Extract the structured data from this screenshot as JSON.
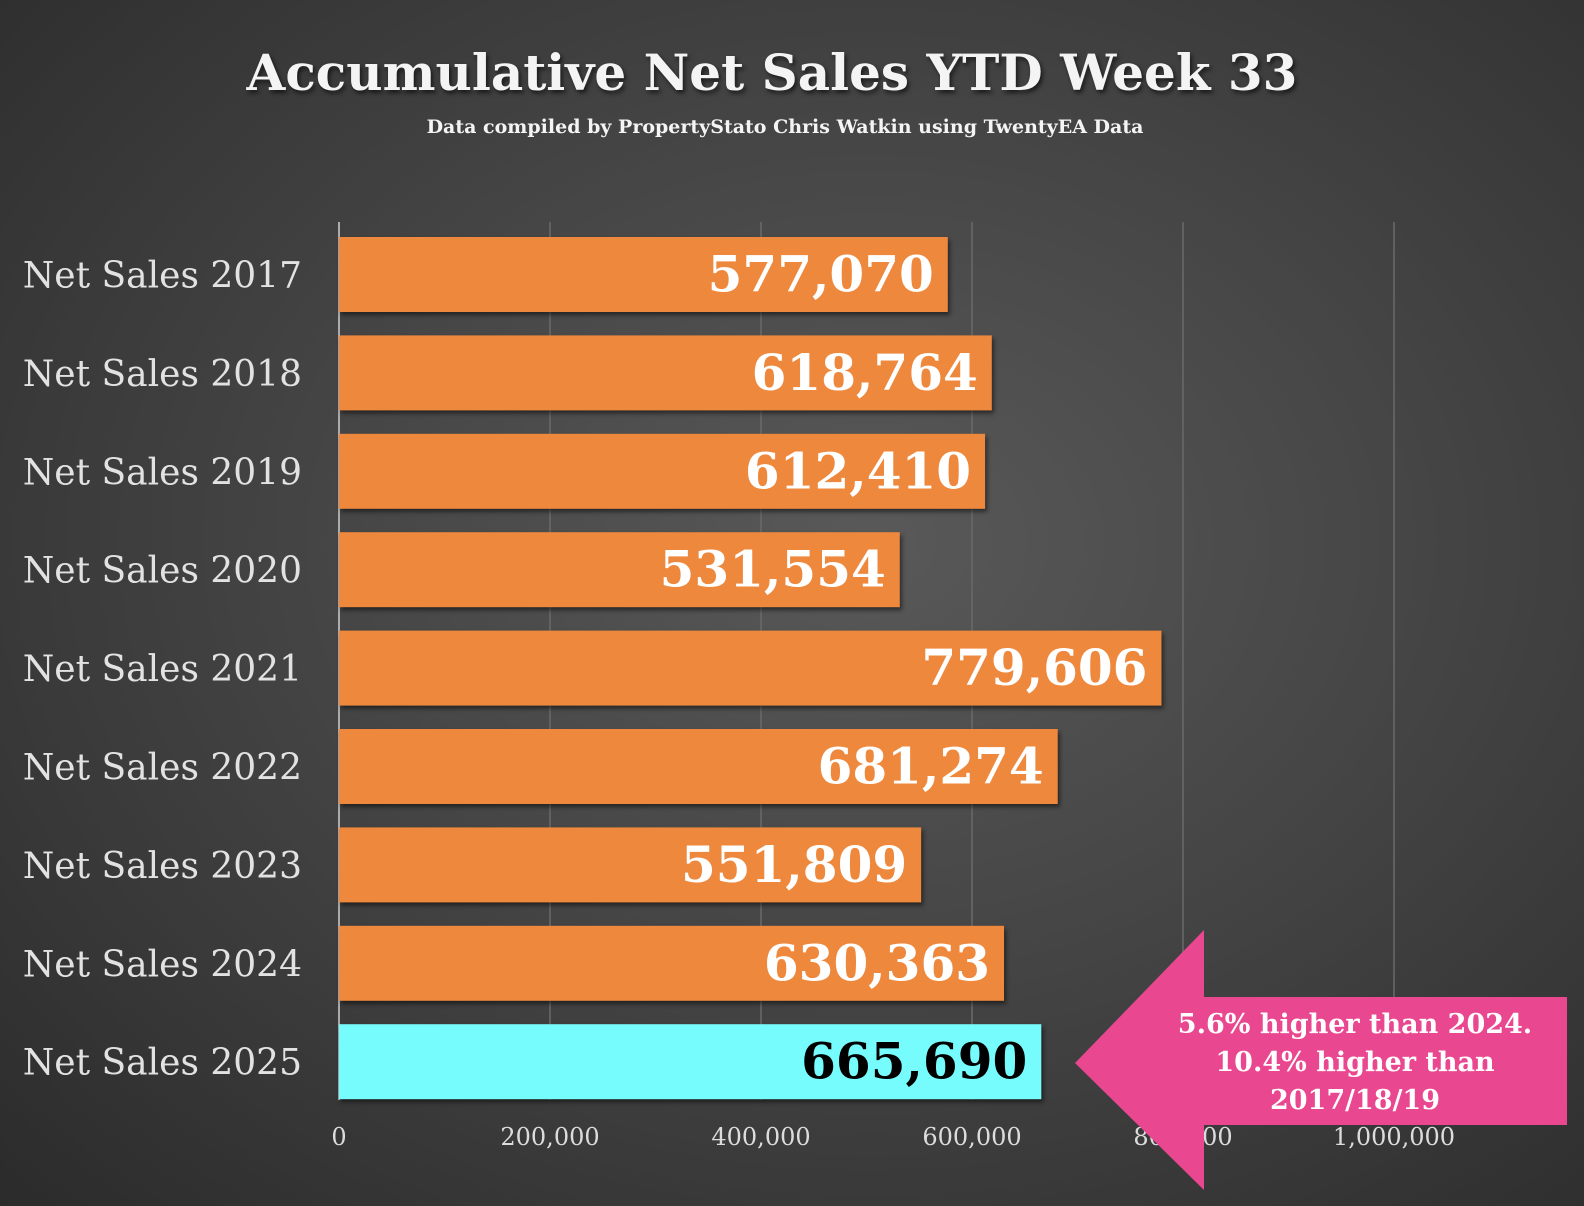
{
  "chart_data": {
    "type": "bar",
    "orientation": "horizontal",
    "title": "Accumulative Net Sales YTD Week 33",
    "subtitle": "Data compiled by PropertyStato Chris Watkin using TwentyEA Data",
    "categories": [
      "Net Sales 2017",
      "Net Sales 2018",
      "Net Sales 2019",
      "Net Sales 2020",
      "Net Sales 2021",
      "Net Sales 2022",
      "Net Sales 2023",
      "Net Sales 2024",
      "Net Sales 2025"
    ],
    "values": [
      577070,
      618764,
      612410,
      531554,
      779606,
      681274,
      551809,
      630363,
      665690
    ],
    "value_labels": [
      "577,070",
      "618,764",
      "612,410",
      "531,554",
      "779,606",
      "681,274",
      "551,809",
      "630,363",
      "665,690"
    ],
    "xlim": [
      0,
      1200000
    ],
    "xticks": [
      0,
      200000,
      400000,
      600000,
      800000,
      1000000
    ],
    "xtick_labels": [
      "0",
      "200,000",
      "400,000",
      "600,000",
      "800,000",
      "1,000,000"
    ],
    "grid": true,
    "xlabel": "",
    "ylabel": "",
    "colors": {
      "default": "#EE883D",
      "highlight": "#77FCFD",
      "annotation": "#E94790"
    },
    "highlight_index": 8,
    "annotation": {
      "lines": [
        "5.6% higher than 2024.",
        "10.4% higher than",
        "2017/18/19"
      ]
    }
  }
}
